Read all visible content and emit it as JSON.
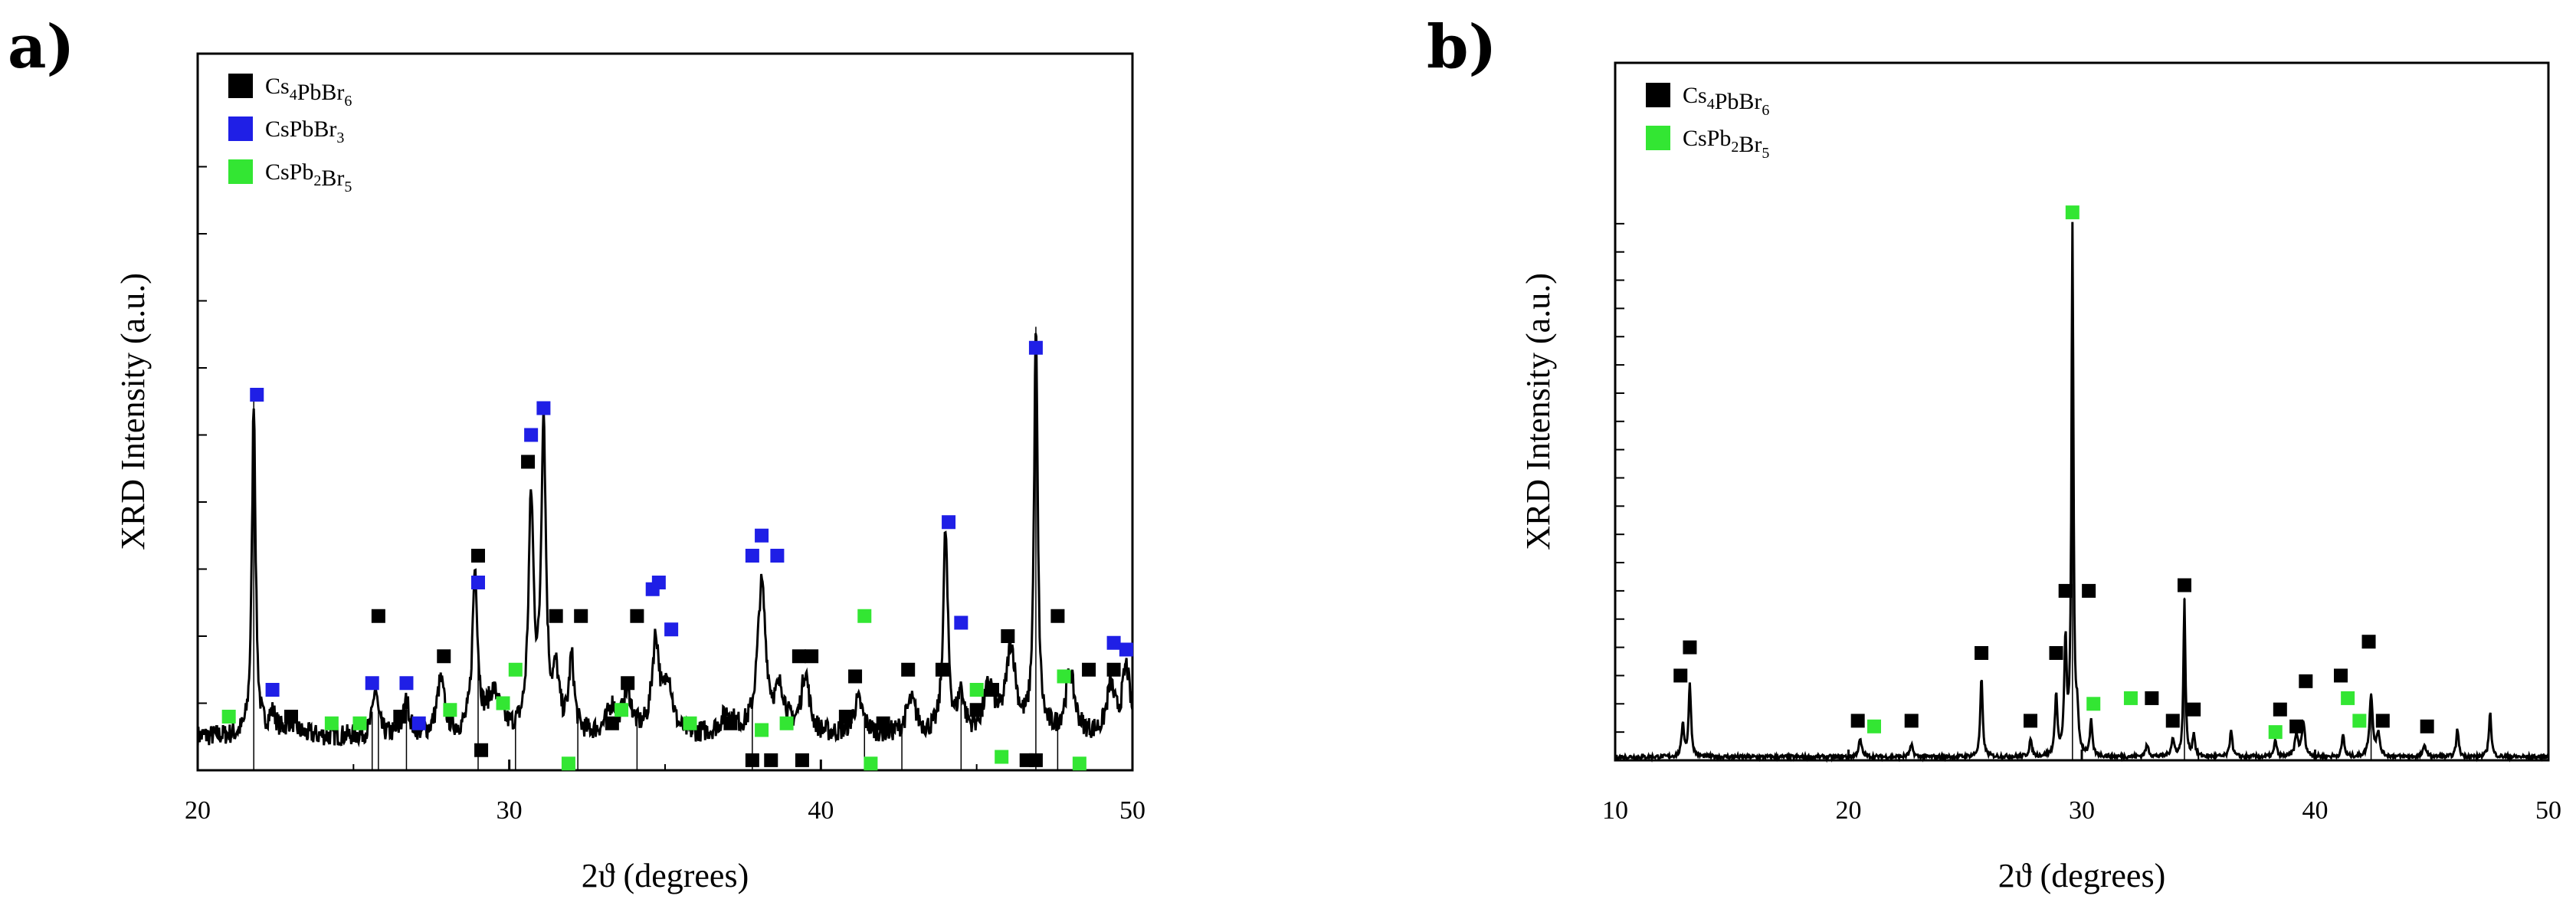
{
  "chart_data": [
    {
      "type": "line",
      "panel_label": "a)",
      "xlabel": "2ϑ (degrees)",
      "ylabel": "XRD Intensity (a.u.)",
      "xlim": [
        20,
        50
      ],
      "ylim": [
        0,
        100
      ],
      "x_ticks": [
        20,
        30,
        40,
        50
      ],
      "legend": {
        "placement": "top-left",
        "entries": [
          {
            "base": "Cs",
            "sub1": "4",
            "mid": "PbBr",
            "sub2": "6",
            "color": "#000000"
          },
          {
            "base": "CsPbBr",
            "sub1": "3",
            "mid": "",
            "sub2": "",
            "color": "#1f1fe6"
          },
          {
            "base": "CsPb",
            "sub1": "2",
            "mid": "Br",
            "sub2": "5",
            "color": "#33e633"
          }
        ]
      },
      "series": [
        {
          "name": "XRD pattern",
          "baseline": 5,
          "noise": 1.6,
          "peaks": [
            [
              21.8,
              50,
              0.07
            ],
            [
              22.4,
              3,
              0.15
            ],
            [
              23.0,
              2,
              0.2
            ],
            [
              25.7,
              7,
              0.1
            ],
            [
              26.7,
              5,
              0.12
            ],
            [
              27.8,
              8,
              0.15
            ],
            [
              28.9,
              24,
              0.1
            ],
            [
              29.5,
              6,
              0.25
            ],
            [
              30.7,
              34,
              0.1
            ],
            [
              31.1,
              46,
              0.09
            ],
            [
              31.5,
              8,
              0.12
            ],
            [
              32.0,
              11,
              0.1
            ],
            [
              33.3,
              4,
              0.2
            ],
            [
              33.8,
              6,
              0.15
            ],
            [
              34.7,
              14,
              0.14
            ],
            [
              35.1,
              8,
              0.15
            ],
            [
              37.0,
              3,
              0.25
            ],
            [
              38.1,
              22,
              0.16
            ],
            [
              38.7,
              6,
              0.2
            ],
            [
              39.5,
              9,
              0.15
            ],
            [
              41.2,
              5,
              0.2
            ],
            [
              42.9,
              5,
              0.2
            ],
            [
              44.0,
              30,
              0.09
            ],
            [
              44.5,
              6,
              0.12
            ],
            [
              45.4,
              7,
              0.2
            ],
            [
              46.1,
              13,
              0.18
            ],
            [
              46.9,
              60,
              0.07
            ],
            [
              48.0,
              9,
              0.18
            ],
            [
              49.3,
              7,
              0.15
            ],
            [
              49.8,
              10,
              0.15
            ]
          ],
          "vlines": [
            21.8,
            25.6,
            25.8,
            26.7,
            29.0,
            30.2,
            32.2,
            34.1,
            37.8,
            41.4,
            42.6,
            44.5,
            46.9,
            47.6
          ]
        }
      ],
      "markers": [
        {
          "phase": "CsPbBr3",
          "color": "#1f1fe6",
          "points": [
            [
              21.9,
              56
            ],
            [
              22.4,
              12
            ],
            [
              25.6,
              13
            ],
            [
              26.7,
              13
            ],
            [
              27.1,
              7
            ],
            [
              29.0,
              28
            ],
            [
              30.7,
              50
            ],
            [
              31.1,
              54
            ],
            [
              34.6,
              27
            ],
            [
              34.8,
              28
            ],
            [
              35.2,
              21
            ],
            [
              37.8,
              32
            ],
            [
              38.1,
              35
            ],
            [
              38.6,
              32
            ],
            [
              44.1,
              37
            ],
            [
              44.5,
              22
            ],
            [
              46.9,
              63
            ],
            [
              49.4,
              19
            ],
            [
              49.8,
              18
            ]
          ]
        },
        {
          "phase": "Cs4PbBr6",
          "color": "#000000",
          "points": [
            [
              23.0,
              8
            ],
            [
              25.8,
              23
            ],
            [
              26.5,
              8
            ],
            [
              27.9,
              17
            ],
            [
              29.0,
              32
            ],
            [
              29.1,
              3
            ],
            [
              30.6,
              46
            ],
            [
              31.5,
              23
            ],
            [
              32.3,
              23
            ],
            [
              33.3,
              7
            ],
            [
              33.8,
              13
            ],
            [
              34.1,
              23
            ],
            [
              37.1,
              7
            ],
            [
              37.8,
              1.5
            ],
            [
              38.4,
              1.5
            ],
            [
              39.3,
              17
            ],
            [
              39.7,
              17
            ],
            [
              39.4,
              1.5
            ],
            [
              40.8,
              8
            ],
            [
              41.1,
              14
            ],
            [
              42.0,
              7
            ],
            [
              42.8,
              15
            ],
            [
              43.9,
              15
            ],
            [
              45.0,
              9
            ],
            [
              45.5,
              12
            ],
            [
              46.0,
              20
            ],
            [
              46.6,
              1.5
            ],
            [
              46.9,
              1.5
            ],
            [
              47.6,
              23
            ],
            [
              48.6,
              15
            ],
            [
              49.4,
              15
            ]
          ]
        },
        {
          "phase": "CsPb2Br5",
          "color": "#33e633",
          "points": [
            [
              21.0,
              8
            ],
            [
              24.3,
              7
            ],
            [
              25.2,
              7
            ],
            [
              28.1,
              9
            ],
            [
              29.8,
              10
            ],
            [
              30.2,
              15
            ],
            [
              31.9,
              1
            ],
            [
              33.6,
              9
            ],
            [
              35.8,
              7
            ],
            [
              38.1,
              6
            ],
            [
              38.9,
              7
            ],
            [
              41.4,
              23
            ],
            [
              41.6,
              1
            ],
            [
              45.0,
              12
            ],
            [
              45.8,
              2
            ],
            [
              47.8,
              14
            ],
            [
              48.3,
              1
            ]
          ]
        }
      ]
    },
    {
      "type": "line",
      "panel_label": "b)",
      "xlabel": "2ϑ (degrees)",
      "ylabel": "XRD Intensity (a.u.)",
      "xlim": [
        10,
        50
      ],
      "ylim": [
        0,
        100
      ],
      "x_ticks": [
        10,
        20,
        30,
        40,
        50
      ],
      "legend": {
        "placement": "top-left",
        "entries": [
          {
            "base": "Cs",
            "sub1": "4",
            "mid": "PbBr",
            "sub2": "6",
            "color": "#000000"
          },
          {
            "base": "CsPb",
            "sub1": "2",
            "mid": "Br",
            "sub2": "5",
            "color": "#33e633"
          }
        ]
      },
      "series": [
        {
          "name": "XRD pattern",
          "baseline": 0.6,
          "noise": 0.35,
          "peaks": [
            [
              12.9,
              6,
              0.06
            ],
            [
              13.2,
              13,
              0.06
            ],
            [
              20.5,
              3,
              0.08
            ],
            [
              22.7,
              2,
              0.08
            ],
            [
              25.7,
              14,
              0.06
            ],
            [
              27.8,
              3,
              0.06
            ],
            [
              28.9,
              11,
              0.06
            ],
            [
              29.3,
              20,
              0.06
            ],
            [
              29.6,
              93,
              0.05
            ],
            [
              29.8,
              6,
              0.06
            ],
            [
              30.4,
              6,
              0.06
            ],
            [
              32.8,
              2,
              0.08
            ],
            [
              33.9,
              3,
              0.08
            ],
            [
              34.4,
              28,
              0.05
            ],
            [
              34.8,
              4,
              0.06
            ],
            [
              36.4,
              5,
              0.06
            ],
            [
              38.3,
              3,
              0.06
            ],
            [
              39.2,
              4,
              0.08
            ],
            [
              39.5,
              6,
              0.08
            ],
            [
              41.2,
              4,
              0.06
            ],
            [
              42.4,
              11,
              0.08
            ],
            [
              42.7,
              4,
              0.08
            ],
            [
              44.7,
              2,
              0.08
            ],
            [
              46.1,
              5,
              0.06
            ],
            [
              47.5,
              8,
              0.06
            ]
          ],
          "vlines": [
            29.6,
            34.4,
            42.4
          ]
        }
      ],
      "markers": [
        {
          "phase": "Cs4PbBr6",
          "color": "#000000",
          "points": [
            [
              12.8,
              15
            ],
            [
              13.2,
              20
            ],
            [
              20.4,
              7
            ],
            [
              22.7,
              7
            ],
            [
              25.7,
              19
            ],
            [
              27.8,
              7
            ],
            [
              28.9,
              19
            ],
            [
              29.3,
              30
            ],
            [
              30.3,
              30
            ],
            [
              33.0,
              11
            ],
            [
              33.9,
              7
            ],
            [
              34.4,
              31
            ],
            [
              34.8,
              9
            ],
            [
              38.5,
              9
            ],
            [
              39.2,
              6
            ],
            [
              39.6,
              14
            ],
            [
              41.1,
              15
            ],
            [
              42.3,
              21
            ],
            [
              42.9,
              7
            ],
            [
              44.8,
              6
            ]
          ]
        },
        {
          "phase": "CsPb2Br5",
          "color": "#33e633",
          "points": [
            [
              21.1,
              6
            ],
            [
              29.6,
              97
            ],
            [
              30.5,
              10
            ],
            [
              32.1,
              11
            ],
            [
              38.3,
              5
            ],
            [
              41.4,
              11
            ],
            [
              41.9,
              7
            ]
          ]
        }
      ]
    }
  ]
}
